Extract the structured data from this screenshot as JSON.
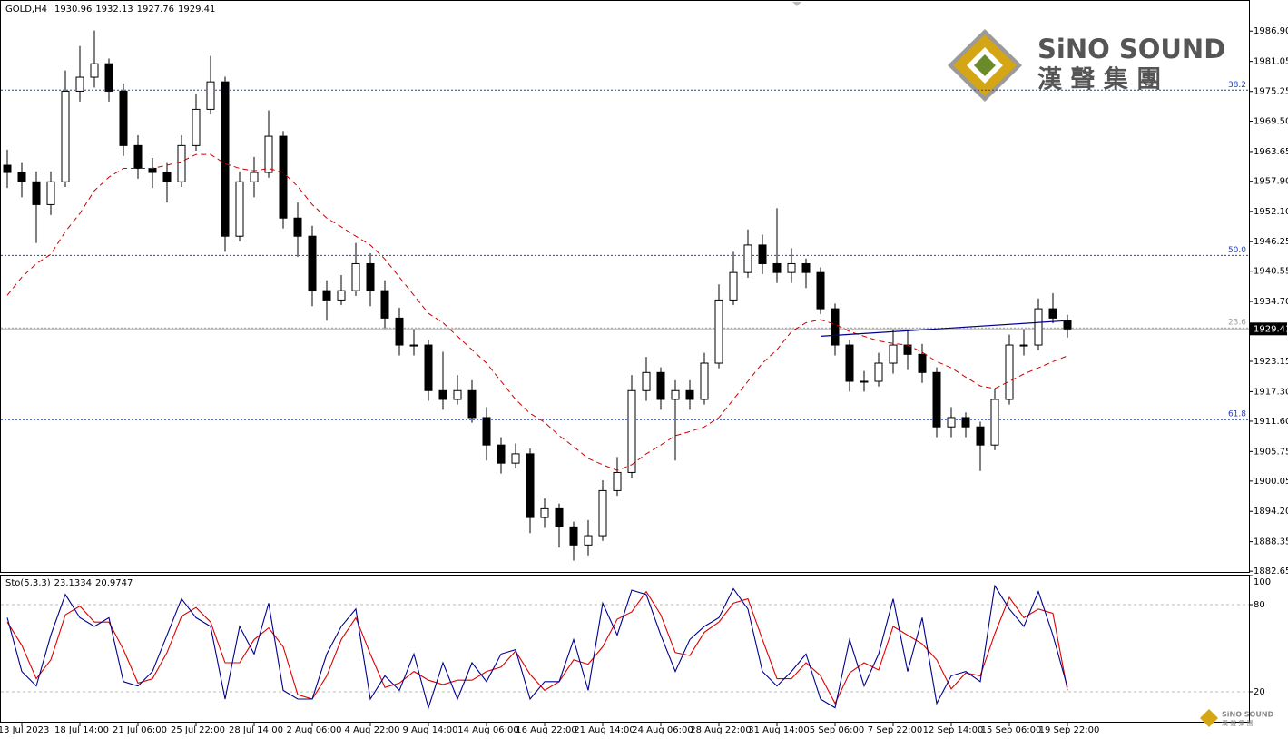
{
  "chart_data": [
    {
      "type": "candlestick",
      "title": "GOLD,H4",
      "color": "#000000",
      "categories": [
        null,
        "13 Jul 2023",
        null,
        null,
        null,
        "18 Jul 14:00",
        null,
        null,
        null,
        "21 Jul 06:00",
        null,
        null,
        null,
        "25 Jul 22:00",
        null,
        null,
        null,
        "28 Jul 14:00",
        null,
        null,
        null,
        "2 Aug 06:00",
        null,
        null,
        null,
        "4 Aug 22:00",
        null,
        null,
        null,
        "9 Aug 14:00",
        null,
        null,
        null,
        "14 Aug 06:00",
        null,
        null,
        null,
        "16 Aug 22:00",
        null,
        null,
        null,
        "21 Aug 14:00",
        null,
        null,
        null,
        "24 Aug 06:00",
        null,
        null,
        null,
        "28 Aug 22:00",
        null,
        null,
        null,
        "31 Aug 14:00",
        null,
        null,
        null,
        "5 Sep 06:00",
        null,
        null,
        null,
        "7 Sep 22:00",
        null,
        null,
        null,
        "12 Sep 14:00",
        null,
        null,
        null,
        "15 Sep 06:00",
        null,
        null,
        null,
        "19 Sep 22:00"
      ],
      "open": [
        1961,
        1959.6,
        1957.8,
        1953.4,
        1957.8,
        1975.3,
        1978,
        1980.6,
        1975.3,
        1964.8,
        1960.4,
        1959.6,
        1957.8,
        1964.8,
        1971.8,
        1977.1,
        1947.3,
        1957.8,
        1959.6,
        1966.6,
        1950.8,
        1947.3,
        1936.8,
        1935,
        1936.8,
        1942,
        1936.8,
        1931.5,
        1926.3,
        1926.3,
        1917.5,
        1915.8,
        1917.5,
        1912.3,
        1907,
        1903.5,
        1905.3,
        1893,
        1894.7,
        1891.2,
        1887.7,
        1889.5,
        1898.2,
        1901.7,
        1917.5,
        1921,
        1915.8,
        1917.5,
        1915.8,
        1922.8,
        1935,
        1940.3,
        1945.6,
        1942,
        1940.3,
        1942,
        1940.3,
        1933.3,
        1926.3,
        1919.3,
        1919.3,
        1922.8,
        1926.3,
        1924.5,
        1921,
        1910.5,
        1912.3,
        1910.5,
        1907,
        1915.8,
        1926.3,
        1926.3,
        1933.3,
        1930.96
      ],
      "high": [
        1964,
        1961.6,
        1959.8,
        1959.8,
        1979.3,
        1984,
        1987,
        1981.6,
        1976.8,
        1966.8,
        1962.4,
        1961.6,
        1966.8,
        1974.8,
        1982.1,
        1978.1,
        1959.8,
        1962.6,
        1971.6,
        1967.6,
        1953.8,
        1949.3,
        1938.8,
        1939.8,
        1946,
        1944,
        1938.8,
        1933.5,
        1929.3,
        1927.3,
        1925,
        1920.5,
        1919.5,
        1914.3,
        1908.5,
        1907.3,
        1906.3,
        1896.7,
        1895.7,
        1892.2,
        1892.5,
        1900.2,
        1904.7,
        1920.5,
        1924,
        1922,
        1919.5,
        1919.5,
        1924.8,
        1938,
        1944.3,
        1948.6,
        1947.6,
        1952.7,
        1945,
        1943,
        1941.3,
        1934.3,
        1927.3,
        1921.3,
        1924.8,
        1929.3,
        1929.3,
        1926.5,
        1922,
        1914.3,
        1913.3,
        1911.5,
        1917.8,
        1928.3,
        1929.3,
        1935.3,
        1936.3,
        1932.13
      ],
      "low": [
        1956.6,
        1954.8,
        1946,
        1951.4,
        1956.8,
        1973.3,
        1976,
        1973.3,
        1962.8,
        1958.4,
        1956.6,
        1953.8,
        1956.8,
        1963.8,
        1970.8,
        1944.3,
        1946.3,
        1954.8,
        1958.6,
        1948.8,
        1943.3,
        1933.8,
        1931,
        1934,
        1935.8,
        1933.8,
        1929.5,
        1924.3,
        1924.3,
        1915.5,
        1913.8,
        1914.8,
        1911.3,
        1904,
        1901.5,
        1902.5,
        1890,
        1891,
        1887.2,
        1884.7,
        1885.7,
        1888.5,
        1897.2,
        1900.7,
        1915.5,
        1913.8,
        1904,
        1913.8,
        1914.8,
        1921.8,
        1934,
        1939.3,
        1940,
        1938.3,
        1938.3,
        1937.3,
        1932.3,
        1924.3,
        1917.3,
        1917.3,
        1918.3,
        1920.8,
        1921.5,
        1919,
        1908.5,
        1908.5,
        1908.5,
        1902,
        1906,
        1914.8,
        1924.3,
        1925.3,
        1930.5,
        1927.76
      ],
      "close": [
        1959.6,
        1957.8,
        1953.4,
        1957.8,
        1975.3,
        1978,
        1980.6,
        1975.3,
        1964.8,
        1960.4,
        1959.6,
        1957.8,
        1964.8,
        1971.8,
        1977.1,
        1947.3,
        1957.8,
        1959.6,
        1966.6,
        1950.8,
        1947.3,
        1936.8,
        1935,
        1936.8,
        1942,
        1936.8,
        1931.5,
        1926.3,
        1926.3,
        1917.5,
        1915.8,
        1917.5,
        1912.3,
        1907,
        1903.5,
        1905.3,
        1893,
        1894.7,
        1891.2,
        1887.7,
        1889.5,
        1898.2,
        1901.7,
        1917.5,
        1921,
        1915.8,
        1917.5,
        1915.8,
        1922.8,
        1935,
        1940.3,
        1945.6,
        1942,
        1940.3,
        1942,
        1940.3,
        1933.3,
        1926.3,
        1919.3,
        1919.3,
        1922.8,
        1926.3,
        1924.5,
        1921,
        1910.5,
        1912.3,
        1910.5,
        1907,
        1915.8,
        1926.3,
        1926.3,
        1933.3,
        1931.5,
        1929.41
      ],
      "moving_average": {
        "color": "#cc0000",
        "values": [
          1935.9,
          1939.4,
          1942,
          1943.8,
          1948.2,
          1951.7,
          1956.1,
          1958.7,
          1960.4,
          1960.4,
          1960.4,
          1961,
          1961.7,
          1963.1,
          1963.1,
          1961.3,
          1960.4,
          1959.9,
          1960.4,
          1959.6,
          1956.9,
          1953.4,
          1950.8,
          1949.1,
          1947.3,
          1945.6,
          1942.9,
          1939.4,
          1935.9,
          1932.4,
          1930.6,
          1928,
          1925.4,
          1922.8,
          1919.3,
          1915.8,
          1913.1,
          1911.4,
          1908.8,
          1906.7,
          1904.4,
          1903.2,
          1902.1,
          1903.2,
          1905.3,
          1907,
          1908.8,
          1909.6,
          1910.5,
          1912.3,
          1915.8,
          1919.3,
          1922.8,
          1925.4,
          1928.9,
          1930.6,
          1931.2,
          1930.3,
          1928.9,
          1928,
          1927.1,
          1926.6,
          1926.3,
          1924.9,
          1923.1,
          1921.9,
          1920.1,
          1918.4,
          1917.9,
          1919.3,
          1920.7,
          1921.9,
          1923.1,
          1924.2
        ]
      },
      "trendline": {
        "color": "#00008b",
        "values": [
          null,
          null,
          null,
          null,
          null,
          null,
          null,
          null,
          null,
          null,
          null,
          null,
          null,
          null,
          null,
          null,
          null,
          null,
          null,
          null,
          null,
          null,
          null,
          null,
          null,
          null,
          null,
          null,
          null,
          null,
          null,
          null,
          null,
          null,
          null,
          null,
          null,
          null,
          null,
          null,
          null,
          null,
          null,
          null,
          null,
          null,
          null,
          null,
          null,
          null,
          null,
          null,
          null,
          null,
          null,
          null,
          1928,
          null,
          null,
          null,
          null,
          null,
          null,
          null,
          null,
          null,
          null,
          null,
          null,
          null,
          null,
          null,
          null,
          1931
        ]
      },
      "fib_levels": [
        {
          "label": "38.2",
          "value": 1975.5,
          "color": "#1f3fbf"
        },
        {
          "label": "50.0",
          "value": 1943.6,
          "color": "#1f3fbf"
        },
        {
          "label": "23.6",
          "value": 1929.6,
          "color": "#a0a0a0"
        },
        {
          "label": "61.8",
          "value": 1911.9,
          "color": "#1f3fbf"
        }
      ],
      "ylim": [
        1882.5,
        1992.9
      ],
      "yticks": [
        {
          "value": 1986.9,
          "label": "1986.90"
        },
        1981.05,
        1975.25,
        {
          "value": 1969.5,
          "label": "1969.50"
        },
        1963.65,
        {
          "value": 1957.9,
          "label": "1957.90"
        },
        {
          "value": 1952.1,
          "label": "1952.10"
        },
        1946.25,
        1940.55,
        {
          "value": 1934.7,
          "label": "1934.70"
        },
        1923.15,
        {
          "value": 1917.3,
          "label": "1917.30"
        },
        {
          "value": 1911.6,
          "label": "1911.60"
        },
        1905.75,
        1900.05,
        {
          "value": 1894.2,
          "label": "1894.20"
        },
        1888.35,
        1882.65
      ]
    },
    {
      "type": "stochastic",
      "title": "Sto(5,3,3)",
      "series": [
        {
          "color": "#00008b",
          "values": [
            71,
            34,
            24,
            59,
            87,
            71,
            65,
            71,
            27,
            24,
            34,
            59,
            84,
            71,
            65,
            15,
            65,
            46,
            81,
            21,
            15,
            15,
            46,
            65,
            77,
            15,
            31,
            21,
            46,
            9,
            40,
            15,
            40,
            27,
            46,
            49,
            15,
            27,
            27,
            56,
            21,
            81,
            59,
            90,
            87,
            59,
            34,
            56,
            65,
            71,
            91,
            77,
            34,
            24,
            34,
            46,
            15,
            9,
            56,
            24,
            46,
            84,
            34,
            71,
            12,
            31,
            34,
            27,
            93,
            77,
            65,
            89,
            59,
            23.1334
          ]
        },
        {
          "color": "#dd0000",
          "values": [
            68,
            52,
            29,
            42,
            73,
            79,
            68,
            68,
            49,
            26,
            29,
            47,
            72,
            78,
            68,
            40,
            40,
            56,
            64,
            51,
            18,
            15,
            31,
            56,
            71,
            46,
            23,
            26,
            34,
            28,
            25,
            28,
            28,
            34,
            37,
            48,
            32,
            21,
            27,
            42,
            39,
            51,
            70,
            75,
            89,
            73,
            47,
            45,
            61,
            68,
            81,
            84,
            56,
            29,
            29,
            40,
            31,
            12,
            33,
            40,
            35,
            65,
            59,
            53,
            42,
            22,
            33,
            31,
            60,
            85,
            71,
            77,
            74,
            20.9747
          ]
        }
      ],
      "ylim": [
        0,
        100
      ],
      "yticks": [
        100,
        80,
        20
      ],
      "levels": [
        80,
        20
      ]
    }
  ],
  "logo": {
    "name": "SiNO SOUND",
    "chinese": "漢 聲 集 團"
  }
}
